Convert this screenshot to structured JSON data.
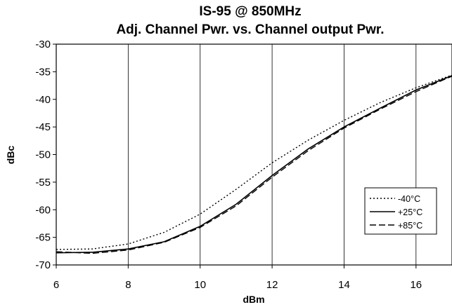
{
  "chart_data": {
    "type": "line",
    "title": "IS-95 @ 850MHz",
    "subtitle": "Adj. Channel Pwr. vs. Channel output Pwr.",
    "xlabel": "dBm",
    "ylabel": "dBc",
    "xlim": [
      6,
      17
    ],
    "ylim": [
      -70,
      -30
    ],
    "x_ticks": [
      6,
      8,
      10,
      12,
      14,
      16
    ],
    "y_ticks": [
      -30,
      -35,
      -40,
      -45,
      -50,
      -55,
      -60,
      -65,
      -70
    ],
    "grid": "vertical",
    "legend_position": "bottom-right",
    "series": [
      {
        "name": "-40°C",
        "style": "dotted",
        "color": "#000000",
        "x": [
          6,
          7,
          8,
          9,
          10,
          11,
          12,
          13,
          14,
          15,
          16,
          17
        ],
        "y": [
          -67.2,
          -67.1,
          -66.2,
          -64.1,
          -60.8,
          -56.3,
          -51.5,
          -47.4,
          -43.8,
          -40.6,
          -37.9,
          -35.6
        ]
      },
      {
        "name": "+25°C",
        "style": "solid",
        "color": "#000000",
        "x": [
          6,
          7,
          8,
          9,
          10,
          11,
          12,
          13,
          14,
          15,
          16,
          17
        ],
        "y": [
          -67.8,
          -67.7,
          -67.1,
          -65.8,
          -63.0,
          -59.0,
          -53.8,
          -49.0,
          -45.0,
          -41.6,
          -38.3,
          -35.7
        ]
      },
      {
        "name": "+85°C",
        "style": "dashed",
        "color": "#000000",
        "x": [
          6,
          7,
          8,
          9,
          10,
          11,
          12,
          13,
          14,
          15,
          16,
          17
        ],
        "y": [
          -67.6,
          -67.9,
          -67.3,
          -65.9,
          -63.2,
          -59.3,
          -54.1,
          -49.3,
          -45.2,
          -41.8,
          -38.6,
          -35.8
        ]
      }
    ]
  }
}
